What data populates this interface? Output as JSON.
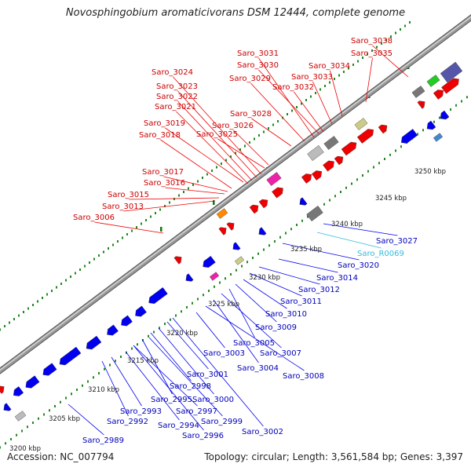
{
  "title": "Novosphingobium aromaticivorans DSM 12444, complete genome",
  "footer": {
    "accession": "Accession: NC_007794",
    "summary": "Topology: circular; Length: 3,561,584 bp; Genes: 3,397"
  },
  "colors": {
    "forward_label": "#cc0000",
    "reverse_label": "#0000bb",
    "rna_label": "#33bbdd",
    "forward_gene": "#ee0000",
    "reverse_gene": "#0000ee",
    "backbone": "#999999",
    "scale_dots": "#228822"
  },
  "scale_labels": [
    "3200 kbp",
    "3205 kbp",
    "3210 kbp",
    "3215 kbp",
    "3220 kbp",
    "3225 kbp",
    "3230 kbp",
    "3235 kbp",
    "3240 kbp",
    "3245 kbp",
    "3250 kbp"
  ],
  "forward_labels": [
    "Saro_3038",
    "Saro_3035",
    "Saro_3034",
    "Saro_3031",
    "Saro_3030",
    "Saro_3033",
    "Saro_3029",
    "Saro_3032",
    "Saro_3024",
    "Saro_3023",
    "Saro_3022",
    "Saro_3021",
    "Saro_3028",
    "Saro_3026",
    "Saro_3019",
    "Saro_3025",
    "Saro_3018",
    "Saro_3017",
    "Saro_3016",
    "Saro_3015",
    "Saro_3013",
    "Saro_3006"
  ],
  "reverse_labels": [
    "Saro_3027",
    "Saro_R0069",
    "Saro_3020",
    "Saro_3014",
    "Saro_3012",
    "Saro_3011",
    "Saro_3010",
    "Saro_3009",
    "Saro_3005",
    "Saro_3007",
    "Saro_3003",
    "Saro_3004",
    "Saro_3001",
    "Saro_3008",
    "Saro_2998",
    "Saro_3000",
    "Saro_2995",
    "Saro_2997",
    "Saro_2993",
    "Saro_2999",
    "Saro_2992",
    "Saro_2994",
    "Saro_3002",
    "Saro_2996",
    "Saro_2989"
  ]
}
